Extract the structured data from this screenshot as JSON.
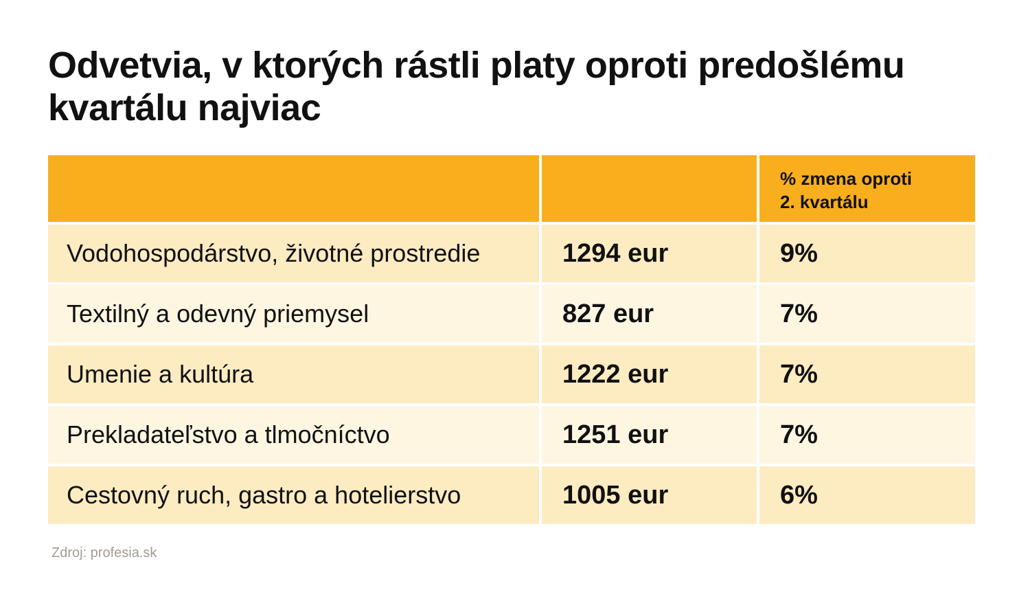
{
  "title": "Odvetvia, v ktorých rástli platy oproti predošlému kvartálu najviac",
  "chart_data": {
    "type": "table",
    "title": "Odvetvia, v ktorých rástli platy oproti predošlému kvartálu najviac",
    "columns": [
      "",
      "",
      "% zmena oproti 2. kvartálu"
    ],
    "rows": [
      {
        "sector": "Vodohospodárstvo, životné prostredie",
        "salary": "1294 eur",
        "change": "9%"
      },
      {
        "sector": "Textilný a odevný priemysel",
        "salary": "827 eur",
        "change": "7%"
      },
      {
        "sector": "Umenie a kultúra",
        "salary": "1222 eur",
        "change": "7%"
      },
      {
        "sector": "Prekladateľstvo a tlmočníctvo",
        "salary": "1251 eur",
        "change": "7%"
      },
      {
        "sector": "Cestovný ruch, gastro a hotelierstvo",
        "salary": "1005 eur",
        "change": "6%"
      }
    ]
  },
  "header_col3_line1": "% zmena oproti",
  "header_col3_line2": "2. kvartálu",
  "source": "Zdroj: profesia.sk",
  "colors": {
    "header": "#f8ae1d",
    "row_odd": "#fdebc2",
    "row_even": "#fef6e1"
  }
}
